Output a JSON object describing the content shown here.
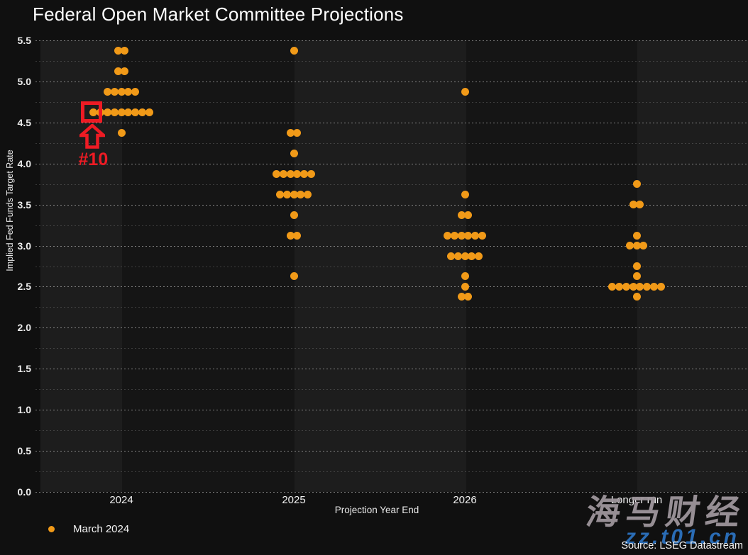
{
  "title": "Federal Open Market Committee Projections",
  "y_axis": {
    "label": "Implied Fed Funds Target Rate",
    "min": 0,
    "max": 5.5,
    "tick_step": 0.5,
    "grid_step": 0.25,
    "tick_labels": [
      "0.0",
      "0.5",
      "1.0",
      "1.5",
      "2.0",
      "2.5",
      "3.0",
      "3.5",
      "4.0",
      "4.5",
      "5.0",
      "5.5"
    ]
  },
  "x_axis": {
    "label": "Projection Year End",
    "categories": [
      "2024",
      "2025",
      "2026",
      "Longer run"
    ]
  },
  "legend": {
    "label": "March 2024"
  },
  "source": "Source: LSEG Datastream",
  "watermark": {
    "title": "海马财经",
    "url": "zz.t01.cn"
  },
  "annotation": {
    "label": "#10",
    "target_category": "2024",
    "target_rate": 4.625,
    "target_dot_index": 0
  },
  "colors": {
    "background": "#101010",
    "band_light": "#1d1d1d",
    "band_dark": "#151515",
    "dot": "#f19a18",
    "red": "#ee1b24",
    "watermark_gray": "#9e969c",
    "watermark_blue": "#2a6cb5"
  },
  "chart_data": {
    "type": "scatter",
    "title": "Federal Open Market Committee Projections",
    "xlabel": "Projection Year End",
    "ylabel": "Implied Fed Funds Target Rate",
    "ylim": [
      0,
      5.5
    ],
    "grid": "dotted, every 0.25",
    "legend_position": "bottom-left",
    "categories": [
      "2024",
      "2025",
      "2026",
      "Longer run"
    ],
    "series": [
      {
        "name": "March 2024",
        "dot_groups": {
          "2024": [
            {
              "rate": 5.375,
              "count": 2
            },
            {
              "rate": 5.125,
              "count": 2
            },
            {
              "rate": 4.875,
              "count": 5
            },
            {
              "rate": 4.625,
              "count": 9
            },
            {
              "rate": 4.375,
              "count": 1
            }
          ],
          "2025": [
            {
              "rate": 5.375,
              "count": 1
            },
            {
              "rate": 4.375,
              "count": 2
            },
            {
              "rate": 4.125,
              "count": 1
            },
            {
              "rate": 3.875,
              "count": 6
            },
            {
              "rate": 3.625,
              "count": 5
            },
            {
              "rate": 3.375,
              "count": 1
            },
            {
              "rate": 3.125,
              "count": 2
            },
            {
              "rate": 2.625,
              "count": 1
            }
          ],
          "2026": [
            {
              "rate": 4.875,
              "count": 1
            },
            {
              "rate": 3.625,
              "count": 1
            },
            {
              "rate": 3.375,
              "count": 2
            },
            {
              "rate": 3.125,
              "count": 6
            },
            {
              "rate": 2.875,
              "count": 5
            },
            {
              "rate": 2.625,
              "count": 1
            },
            {
              "rate": 2.5,
              "count": 1
            },
            {
              "rate": 2.375,
              "count": 2
            }
          ],
          "Longer run": [
            {
              "rate": 3.75,
              "count": 1
            },
            {
              "rate": 3.5,
              "count": 2
            },
            {
              "rate": 3.125,
              "count": 1
            },
            {
              "rate": 3.0,
              "count": 3
            },
            {
              "rate": 2.75,
              "count": 1
            },
            {
              "rate": 2.625,
              "count": 1
            },
            {
              "rate": 2.5,
              "count": 8
            },
            {
              "rate": 2.375,
              "count": 1
            }
          ]
        }
      }
    ]
  }
}
